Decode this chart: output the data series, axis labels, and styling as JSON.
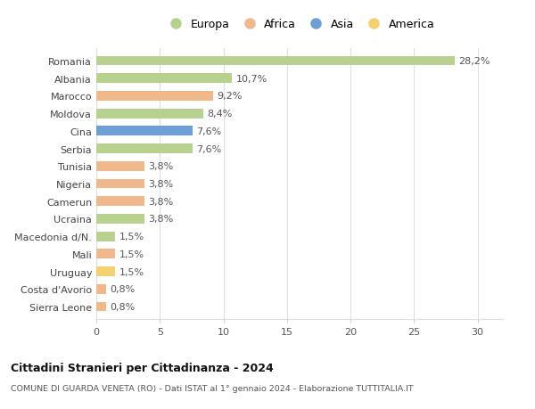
{
  "categories": [
    "Sierra Leone",
    "Costa d'Avorio",
    "Uruguay",
    "Mali",
    "Macedonia d/N.",
    "Ucraina",
    "Camerun",
    "Nigeria",
    "Tunisia",
    "Serbia",
    "Cina",
    "Moldova",
    "Marocco",
    "Albania",
    "Romania"
  ],
  "values": [
    0.8,
    0.8,
    1.5,
    1.5,
    1.5,
    3.8,
    3.8,
    3.8,
    3.8,
    7.6,
    7.6,
    8.4,
    9.2,
    10.7,
    28.2
  ],
  "labels": [
    "0,8%",
    "0,8%",
    "1,5%",
    "1,5%",
    "1,5%",
    "3,8%",
    "3,8%",
    "3,8%",
    "3,8%",
    "7,6%",
    "7,6%",
    "8,4%",
    "9,2%",
    "10,7%",
    "28,2%"
  ],
  "colors": [
    "#f0b98b",
    "#f0b98b",
    "#f5d06e",
    "#f0b98b",
    "#b8d18e",
    "#b8d18e",
    "#f0b98b",
    "#f0b98b",
    "#f0b98b",
    "#b8d18e",
    "#6e9fd4",
    "#b8d18e",
    "#f0b98b",
    "#b8d18e",
    "#b8d18e"
  ],
  "legend_labels": [
    "Europa",
    "Africa",
    "Asia",
    "America"
  ],
  "legend_colors": [
    "#b8d18e",
    "#f0b98b",
    "#6e9fd4",
    "#f5d06e"
  ],
  "title1": "Cittadini Stranieri per Cittadinanza - 2024",
  "title2": "COMUNE DI GUARDA VENETA (RO) - Dati ISTAT al 1° gennaio 2024 - Elaborazione TUTTITALIA.IT",
  "xlim": [
    0,
    32
  ],
  "xticks": [
    0,
    5,
    10,
    15,
    20,
    25,
    30
  ],
  "bar_height": 0.55,
  "background_color": "#ffffff",
  "grid_color": "#dddddd",
  "label_fontsize": 8,
  "tick_label_fontsize": 8,
  "label_color": "#555555",
  "ytick_color": "#444444"
}
